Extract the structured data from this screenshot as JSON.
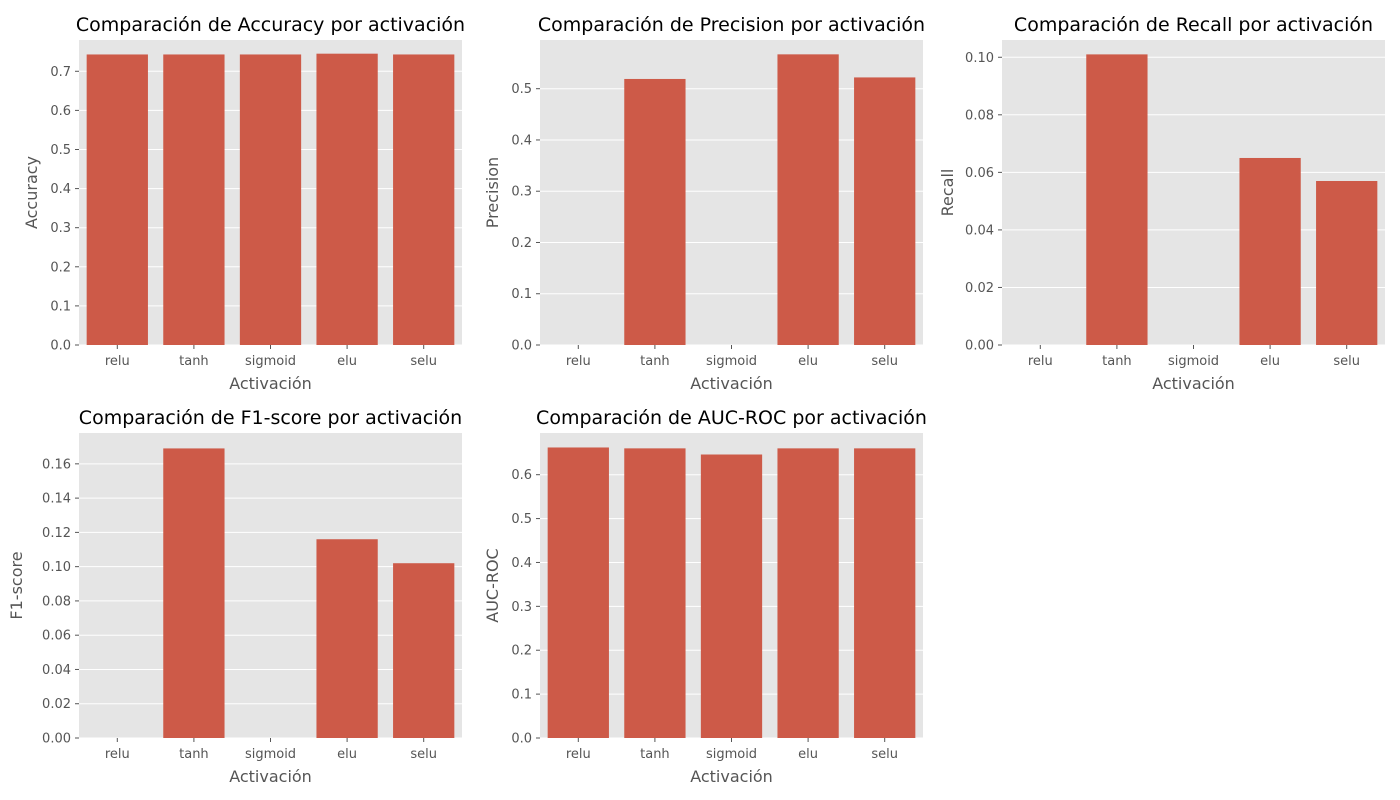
{
  "style": {
    "panel_bg": "#e5e5e5",
    "grid_color": "#ffffff",
    "bar_color": "#cd5a48",
    "text_color": "#555555",
    "title_color": "#000000"
  },
  "chart_data": [
    {
      "type": "bar",
      "title": "Comparación de Accuracy por activación",
      "xlabel": "Activación",
      "ylabel": "Accuracy",
      "categories": [
        "relu",
        "tanh",
        "sigmoid",
        "elu",
        "selu"
      ],
      "values": [
        0.743,
        0.743,
        0.743,
        0.745,
        0.743
      ],
      "ylim": [
        0,
        0.78
      ],
      "yticks": [
        0.0,
        0.1,
        0.2,
        0.3,
        0.4,
        0.5,
        0.6,
        0.7
      ],
      "ytick_labels": [
        "0.0",
        "0.1",
        "0.2",
        "0.3",
        "0.4",
        "0.5",
        "0.6",
        "0.7"
      ],
      "grid": true
    },
    {
      "type": "bar",
      "title": "Comparación de Precision por activación",
      "xlabel": "Activación",
      "ylabel": "Precision",
      "categories": [
        "relu",
        "tanh",
        "sigmoid",
        "elu",
        "selu"
      ],
      "values": [
        0.0,
        0.519,
        0.0,
        0.567,
        0.522
      ],
      "ylim": [
        0,
        0.595
      ],
      "yticks": [
        0.0,
        0.1,
        0.2,
        0.3,
        0.4,
        0.5
      ],
      "ytick_labels": [
        "0.0",
        "0.1",
        "0.2",
        "0.3",
        "0.4",
        "0.5"
      ],
      "grid": true
    },
    {
      "type": "bar",
      "title": "Comparación de Recall por activación",
      "xlabel": "Activación",
      "ylabel": "Recall",
      "categories": [
        "relu",
        "tanh",
        "sigmoid",
        "elu",
        "selu"
      ],
      "values": [
        0.0,
        0.101,
        0.0,
        0.065,
        0.057
      ],
      "ylim": [
        0,
        0.106
      ],
      "yticks": [
        0.0,
        0.02,
        0.04,
        0.06,
        0.08,
        0.1
      ],
      "ytick_labels": [
        "0.00",
        "0.02",
        "0.04",
        "0.06",
        "0.08",
        "0.10"
      ],
      "grid": true
    },
    {
      "type": "bar",
      "title": "Comparación de F1-score por activación",
      "xlabel": "Activación",
      "ylabel": "F1-score",
      "categories": [
        "relu",
        "tanh",
        "sigmoid",
        "elu",
        "selu"
      ],
      "values": [
        0.0,
        0.169,
        0.0,
        0.116,
        0.102
      ],
      "ylim": [
        0,
        0.178
      ],
      "yticks": [
        0.0,
        0.02,
        0.04,
        0.06,
        0.08,
        0.1,
        0.12,
        0.14,
        0.16
      ],
      "ytick_labels": [
        "0.00",
        "0.02",
        "0.04",
        "0.06",
        "0.08",
        "0.10",
        "0.12",
        "0.14",
        "0.16"
      ],
      "grid": true
    },
    {
      "type": "bar",
      "title": "Comparación de AUC-ROC por activación",
      "xlabel": "Activación",
      "ylabel": "AUC-ROC",
      "categories": [
        "relu",
        "tanh",
        "sigmoid",
        "elu",
        "selu"
      ],
      "values": [
        0.662,
        0.66,
        0.646,
        0.66,
        0.66
      ],
      "ylim": [
        0,
        0.695
      ],
      "yticks": [
        0.0,
        0.1,
        0.2,
        0.3,
        0.4,
        0.5,
        0.6
      ],
      "ytick_labels": [
        "0.0",
        "0.1",
        "0.2",
        "0.3",
        "0.4",
        "0.5",
        "0.6"
      ],
      "grid": true
    }
  ]
}
